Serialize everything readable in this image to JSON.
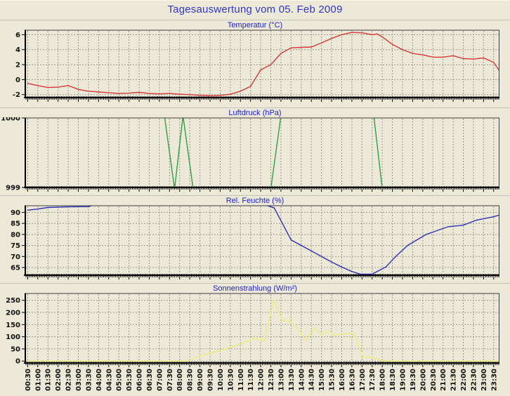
{
  "window": {
    "title": "Tagesauswertung vom 05. Feb 2009"
  },
  "colors": {
    "background": "#ece9d8",
    "title_text": "#3434c8",
    "chart_title_text": "#2222c8",
    "grid": "#9a998b",
    "axis": "#000000",
    "temperature_line": "#d83838",
    "pressure_line": "#2fa044",
    "humidity_line": "#3030b0",
    "radiation_line": "#f0ec7a"
  },
  "x_axis": {
    "labels": [
      "00:30",
      "01:00",
      "01:30",
      "02:00",
      "02:30",
      "03:00",
      "03:30",
      "04:00",
      "04:30",
      "05:00",
      "05:30",
      "06:00",
      "06:30",
      "07:00",
      "07:30",
      "08:00",
      "08:30",
      "09:00",
      "09:30",
      "10:00",
      "10:30",
      "11:00",
      "11:30",
      "12:00",
      "12:30",
      "13:00",
      "13:30",
      "14:00",
      "14:30",
      "15:00",
      "15:30",
      "16:00",
      "16:30",
      "17:00",
      "17:30",
      "18:00",
      "18:30",
      "19:00",
      "19:30",
      "20:00",
      "20:30",
      "21:00",
      "21:30",
      "22:00",
      "22:30",
      "23:00",
      "23:30"
    ],
    "label_step_minutes": 30,
    "minor_tick_minutes": 5,
    "domain_minutes": [
      25,
      1425
    ]
  },
  "chart_data": [
    {
      "type": "line",
      "title": "Temperatur (°C)",
      "line_color": "#d83838",
      "y_ticks": [
        6,
        4,
        2,
        0,
        -2
      ],
      "y_range": [
        -2.4,
        6.6
      ],
      "grid": true,
      "points": [
        [
          "00:30",
          -0.5
        ],
        [
          "01:00",
          -0.8
        ],
        [
          "01:30",
          -1.05
        ],
        [
          "02:00",
          -1.0
        ],
        [
          "02:30",
          -0.8
        ],
        [
          "03:00",
          -1.3
        ],
        [
          "03:30",
          -1.55
        ],
        [
          "04:00",
          -1.65
        ],
        [
          "04:30",
          -1.75
        ],
        [
          "05:00",
          -1.85
        ],
        [
          "05:30",
          -1.8
        ],
        [
          "06:00",
          -1.7
        ],
        [
          "06:30",
          -1.85
        ],
        [
          "07:00",
          -1.9
        ],
        [
          "07:30",
          -1.85
        ],
        [
          "08:00",
          -1.95
        ],
        [
          "08:30",
          -2.0
        ],
        [
          "09:00",
          -2.1
        ],
        [
          "09:30",
          -2.15
        ],
        [
          "10:00",
          -2.1
        ],
        [
          "10:30",
          -1.95
        ],
        [
          "11:00",
          -1.55
        ],
        [
          "11:30",
          -0.9
        ],
        [
          "12:00",
          1.3
        ],
        [
          "12:30",
          2.0
        ],
        [
          "13:00",
          3.5
        ],
        [
          "13:30",
          4.25
        ],
        [
          "14:00",
          4.3
        ],
        [
          "14:30",
          4.35
        ],
        [
          "15:00",
          4.9
        ],
        [
          "15:30",
          5.5
        ],
        [
          "16:00",
          6.0
        ],
        [
          "16:30",
          6.3
        ],
        [
          "17:00",
          6.25
        ],
        [
          "17:30",
          6.0
        ],
        [
          "17:45",
          6.1
        ],
        [
          "18:00",
          5.7
        ],
        [
          "18:30",
          4.7
        ],
        [
          "19:00",
          4.0
        ],
        [
          "19:30",
          3.5
        ],
        [
          "20:00",
          3.3
        ],
        [
          "20:30",
          3.0
        ],
        [
          "21:00",
          3.0
        ],
        [
          "21:30",
          3.2
        ],
        [
          "22:00",
          2.8
        ],
        [
          "22:30",
          2.75
        ],
        [
          "23:00",
          2.9
        ],
        [
          "23:30",
          2.3
        ],
        [
          "23:45",
          1.3
        ]
      ]
    },
    {
      "type": "line",
      "title": "Luftdruck (hPa)",
      "line_color": "#2fa044",
      "y_ticks": [
        1000,
        999
      ],
      "y_range": [
        999.02,
        999.97
      ],
      "grid": true,
      "points": [
        [
          "00:30",
          1000
        ],
        [
          "07:15",
          1000
        ],
        [
          "07:45",
          999
        ],
        [
          "08:10",
          1000
        ],
        [
          "08:40",
          999
        ],
        [
          "12:30",
          999
        ],
        [
          "13:00",
          1000
        ],
        [
          "17:35",
          1000
        ],
        [
          "18:00",
          999
        ],
        [
          "23:45",
          999
        ]
      ]
    },
    {
      "type": "line",
      "title": "Rel. Feuchte (%)",
      "line_color": "#3030b0",
      "y_ticks": [
        90,
        85,
        80,
        75,
        70,
        65
      ],
      "y_range": [
        61.5,
        93
      ],
      "grid": true,
      "points": [
        [
          "00:30",
          91
        ],
        [
          "01:00",
          91.5
        ],
        [
          "01:30",
          92.2
        ],
        [
          "02:30",
          92.5
        ],
        [
          "03:30",
          92.6
        ],
        [
          "03:50",
          93.5
        ],
        [
          "12:10",
          93.5
        ],
        [
          "12:40",
          92
        ],
        [
          "13:30",
          77.5
        ],
        [
          "14:30",
          72.5
        ],
        [
          "15:30",
          67.5
        ],
        [
          "16:00",
          65.2
        ],
        [
          "16:30",
          63.2
        ],
        [
          "16:55",
          62
        ],
        [
          "17:30",
          62
        ],
        [
          "18:10",
          65.2
        ],
        [
          "18:40",
          70
        ],
        [
          "19:15",
          75
        ],
        [
          "20:10",
          80
        ],
        [
          "21:15",
          83.5
        ],
        [
          "22:00",
          84.2
        ],
        [
          "22:40",
          86.5
        ],
        [
          "23:30",
          88
        ],
        [
          "23:45",
          88.7
        ]
      ]
    },
    {
      "type": "line",
      "title": "Sonnenstrahlung (W/m²)",
      "line_color": "#f0ec7a",
      "y_ticks": [
        250,
        200,
        150,
        100,
        50,
        0
      ],
      "y_range": [
        -8,
        278
      ],
      "grid": true,
      "points": [
        [
          "00:30",
          0
        ],
        [
          "08:20",
          0
        ],
        [
          "08:50",
          15
        ],
        [
          "09:30",
          33
        ],
        [
          "10:15",
          50
        ],
        [
          "11:00",
          70
        ],
        [
          "11:45",
          95
        ],
        [
          "12:10",
          82
        ],
        [
          "12:40",
          252
        ],
        [
          "13:05",
          165
        ],
        [
          "13:20",
          170
        ],
        [
          "13:40",
          148
        ],
        [
          "14:15",
          85
        ],
        [
          "14:40",
          135
        ],
        [
          "15:00",
          108
        ],
        [
          "15:20",
          125
        ],
        [
          "15:35",
          105
        ],
        [
          "16:00",
          112
        ],
        [
          "16:35",
          113
        ],
        [
          "17:05",
          15
        ],
        [
          "17:30",
          17
        ],
        [
          "17:55",
          4
        ],
        [
          "18:10",
          0
        ],
        [
          "23:45",
          0
        ]
      ]
    }
  ]
}
